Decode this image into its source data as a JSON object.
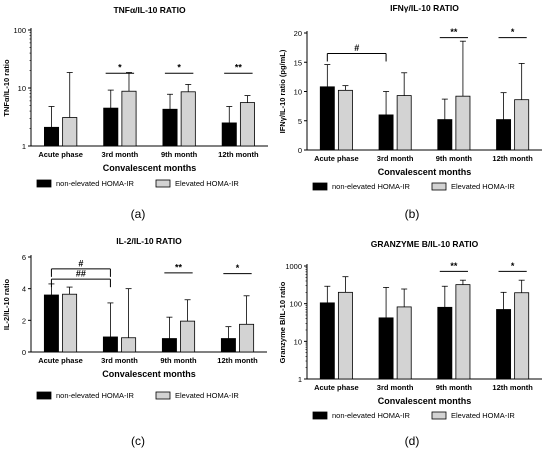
{
  "legend_entries": [
    "non-elevated HOMA-IR",
    "Elevated HOMA-IR"
  ],
  "colors": {
    "non_elevated": "#000000",
    "elevated": "#d3d3d3",
    "outline": "#000000"
  },
  "chart_data": [
    {
      "type": "bar",
      "panel_label": "(a)",
      "title": "TNFα/IL-10 RATIO",
      "ylabel": "TNFα/IL-10 ratio",
      "xlabel": "Convalescent months",
      "categories": [
        "Acute phase",
        "3rd month",
        "9th month",
        "12th month"
      ],
      "yscale": "log",
      "ylim": [
        1,
        100
      ],
      "yticks": [
        1,
        10,
        100
      ],
      "ytick_labels": [
        "1",
        "10",
        "100"
      ],
      "series": [
        {
          "name": "non-elevated HOMA-IR",
          "values": [
            2.1,
            4.5,
            4.3,
            2.5
          ],
          "error_upper": [
            4.8,
            9.2,
            7.8,
            4.8
          ]
        },
        {
          "name": "Elevated HOMA-IR",
          "values": [
            3.1,
            8.8,
            8.6,
            5.6
          ],
          "error_upper": [
            18.5,
            18.5,
            11.5,
            7.4
          ]
        }
      ],
      "annotations": [
        {
          "text": "*",
          "from": 1,
          "to": 1,
          "y": 18
        },
        {
          "text": "*",
          "from": 2,
          "to": 2,
          "y": 18
        },
        {
          "text": "**",
          "from": 3,
          "to": 3,
          "y": 18
        }
      ],
      "legend_position": "bottom"
    },
    {
      "type": "bar",
      "panel_label": "(b)",
      "title": "IFNγ/IL-10 RATIO",
      "ylabel": "IFNγ/IL-10 ratio (pg/mL)",
      "xlabel": "Convalescent months",
      "categories": [
        "Acute phase",
        "3rd month",
        "9th month",
        "12th month"
      ],
      "yscale": "linear",
      "ylim": [
        0,
        20
      ],
      "yticks": [
        0,
        5,
        10,
        15,
        20
      ],
      "ytick_labels": [
        "0",
        "5",
        "10",
        "15",
        "20"
      ],
      "series": [
        {
          "name": "non-elevated HOMA-IR",
          "values": [
            10.8,
            6.0,
            5.2,
            5.2
          ],
          "error_upper": [
            14.6,
            10.0,
            8.7,
            9.8
          ]
        },
        {
          "name": "Elevated HOMA-IR",
          "values": [
            10.2,
            9.3,
            9.2,
            8.6
          ],
          "error_upper": [
            11.0,
            13.2,
            18.6,
            14.8
          ]
        }
      ],
      "annotations": [
        {
          "text": "#",
          "from": 0,
          "to": 1,
          "y": 16.5,
          "drop": true
        },
        {
          "text": "**",
          "from": 2,
          "to": 2,
          "y": 19.2
        },
        {
          "text": "*",
          "from": 3,
          "to": 3,
          "y": 19.2
        }
      ],
      "legend_position": "bottom"
    },
    {
      "type": "bar",
      "panel_label": "(c)",
      "title": "IL-2/IL-10 RATIO",
      "ylabel": "IL-2/IL-10 ratio",
      "xlabel": "Convalescent months",
      "categories": [
        "Acute phase",
        "3rd month",
        "9th month",
        "12th month"
      ],
      "yscale": "linear",
      "ylim": [
        0,
        6
      ],
      "yticks": [
        0,
        2,
        4,
        6
      ],
      "ytick_labels": [
        "0",
        "2",
        "4",
        "6"
      ],
      "series": [
        {
          "name": "non-elevated HOMA-IR",
          "values": [
            3.6,
            0.95,
            0.85,
            0.85
          ],
          "error_upper": [
            4.3,
            3.1,
            2.2,
            1.6
          ]
        },
        {
          "name": "Elevated HOMA-IR",
          "values": [
            3.65,
            0.9,
            1.95,
            1.75
          ],
          "error_upper": [
            4.1,
            4.0,
            3.3,
            3.55
          ]
        }
      ],
      "annotations": [
        {
          "text": "#",
          "from": 0,
          "to": 1,
          "y": 5.25,
          "drop": true
        },
        {
          "text": "##",
          "from": 0,
          "to": 1,
          "y": 4.6,
          "drop": true
        },
        {
          "text": "**",
          "from": 2,
          "to": 2,
          "y": 5.0
        },
        {
          "text": "*",
          "from": 3,
          "to": 3,
          "y": 4.95
        }
      ],
      "legend_position": "bottom"
    },
    {
      "type": "bar",
      "panel_label": "(d)",
      "title": "GRANZYME B/IL-10 RATIO",
      "ylabel": "Granzyme B/IL-10 ratio",
      "xlabel": "Convalescent months",
      "categories": [
        "Acute phase",
        "3rd month",
        "9th month",
        "12th month"
      ],
      "yscale": "log",
      "ylim": [
        1,
        1000
      ],
      "yticks": [
        1,
        10,
        100,
        1000
      ],
      "ytick_labels": [
        "1",
        "10",
        "100",
        "1000"
      ],
      "series": [
        {
          "name": "non-elevated HOMA-IR",
          "values": [
            105,
            42,
            80,
            70
          ],
          "error_upper": [
            290,
            270,
            290,
            200
          ]
        },
        {
          "name": "Elevated HOMA-IR",
          "values": [
            200,
            82,
            320,
            195
          ],
          "error_upper": [
            520,
            245,
            420,
            420
          ]
        }
      ],
      "annotations": [
        {
          "text": "**",
          "from": 2,
          "to": 2,
          "y": 720
        },
        {
          "text": "*",
          "from": 3,
          "to": 3,
          "y": 720
        }
      ],
      "legend_position": "bottom"
    }
  ]
}
